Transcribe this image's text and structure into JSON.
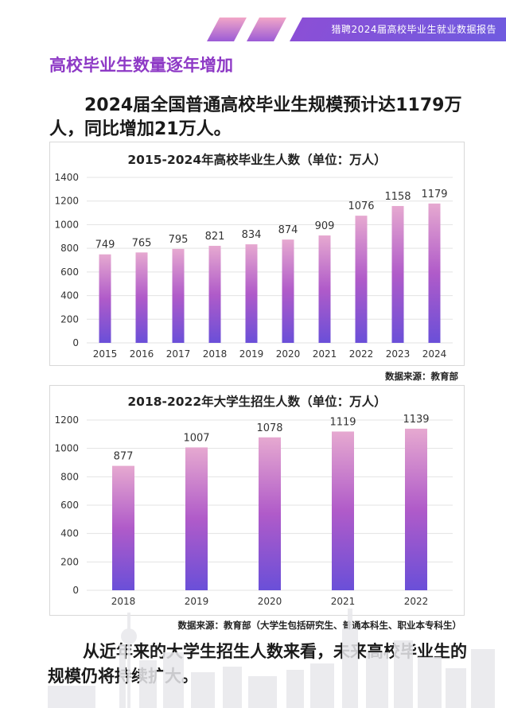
{
  "header": {
    "banner_text": "猎聘2024届高校毕业生就业数据报告"
  },
  "section_title": "高校毕业生数量逐年增加",
  "intro_text": "2024届全国普通高校毕业生规模预计达1179万人，同比增加21万人。",
  "closing_text": "从近年来的大学生招生人数来看，未来高校毕业生的规模仍将持续扩大。",
  "colors": {
    "accent": "#8e3ac6",
    "bar_top": "#e6a9d0",
    "bar_mid": "#b05bc9",
    "bar_bottom": "#6a4fd8"
  },
  "chart_data": [
    {
      "type": "bar",
      "title": "2015-2024年高校毕业生人数（单位：万人）",
      "categories": [
        "2015",
        "2016",
        "2017",
        "2018",
        "2019",
        "2020",
        "2021",
        "2022",
        "2023",
        "2024"
      ],
      "values": [
        749,
        765,
        795,
        821,
        834,
        874,
        909,
        1076,
        1158,
        1179
      ],
      "ylim": [
        0,
        1400
      ],
      "yticks": [
        0,
        200,
        400,
        600,
        800,
        1000,
        1200,
        1400
      ],
      "grid": true,
      "source": "数据来源：教育部"
    },
    {
      "type": "bar",
      "title": "2018-2022年大学生招生人数（单位：万人）",
      "categories": [
        "2018",
        "2019",
        "2020",
        "2021",
        "2022"
      ],
      "values": [
        877,
        1007,
        1078,
        1119,
        1139
      ],
      "ylim": [
        0,
        1200
      ],
      "yticks": [
        0,
        200,
        400,
        600,
        800,
        1000,
        1200
      ],
      "grid": true,
      "source": "数据来源：教育部（大学生包括研究生、普通本科生、职业本专科生）"
    }
  ]
}
